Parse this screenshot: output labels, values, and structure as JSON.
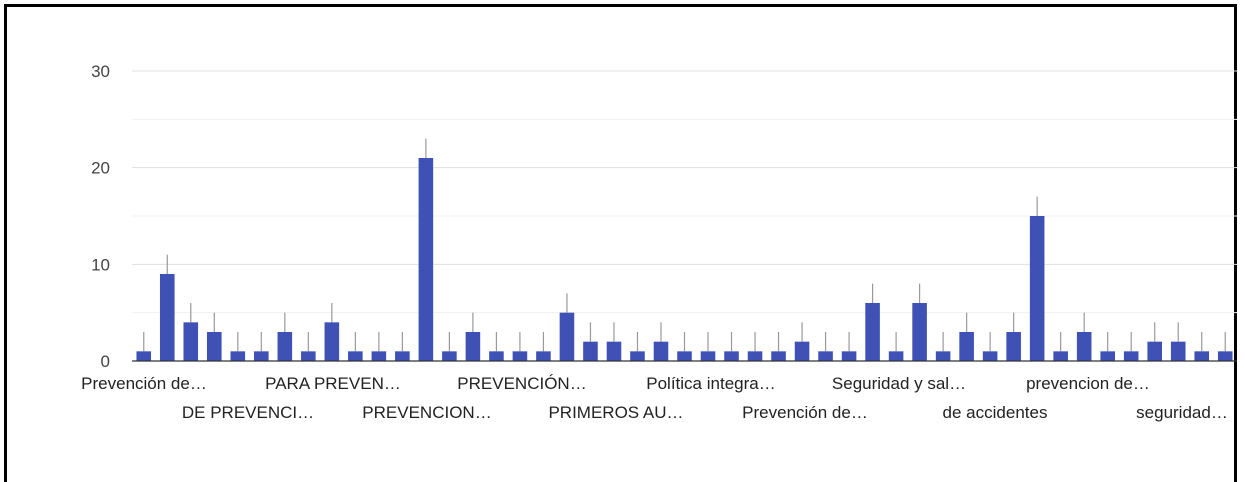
{
  "chart_data": {
    "type": "bar",
    "title": "",
    "xlabel": "",
    "ylabel": "",
    "ylim": [
      0,
      30
    ],
    "yticks": [
      0,
      10,
      20,
      30
    ],
    "grid": true,
    "legend": "none",
    "bar_color": "#3f51b5",
    "errorbar_color": "#999999",
    "values": [
      1,
      9,
      4,
      3,
      1,
      1,
      3,
      1,
      4,
      1,
      1,
      1,
      21,
      1,
      3,
      1,
      1,
      1,
      5,
      2,
      2,
      1,
      2,
      1,
      1,
      1,
      1,
      1,
      2,
      1,
      1,
      6,
      1,
      6,
      1,
      3,
      1,
      3,
      15,
      1,
      3,
      1,
      1,
      2,
      2,
      1,
      1
    ],
    "x_labels_row1": [
      "Prevención de…",
      "PARA PREVEN…",
      "PREVENCIÓN…",
      "Política integra…",
      "Seguridad y sal…",
      "prevencion de…"
    ],
    "x_labels_row2": [
      "DE PREVENCI…",
      "PREVENCION…",
      "PRIMEROS AU…",
      "Prevención de…",
      "de accidentes",
      "seguridad…"
    ]
  }
}
